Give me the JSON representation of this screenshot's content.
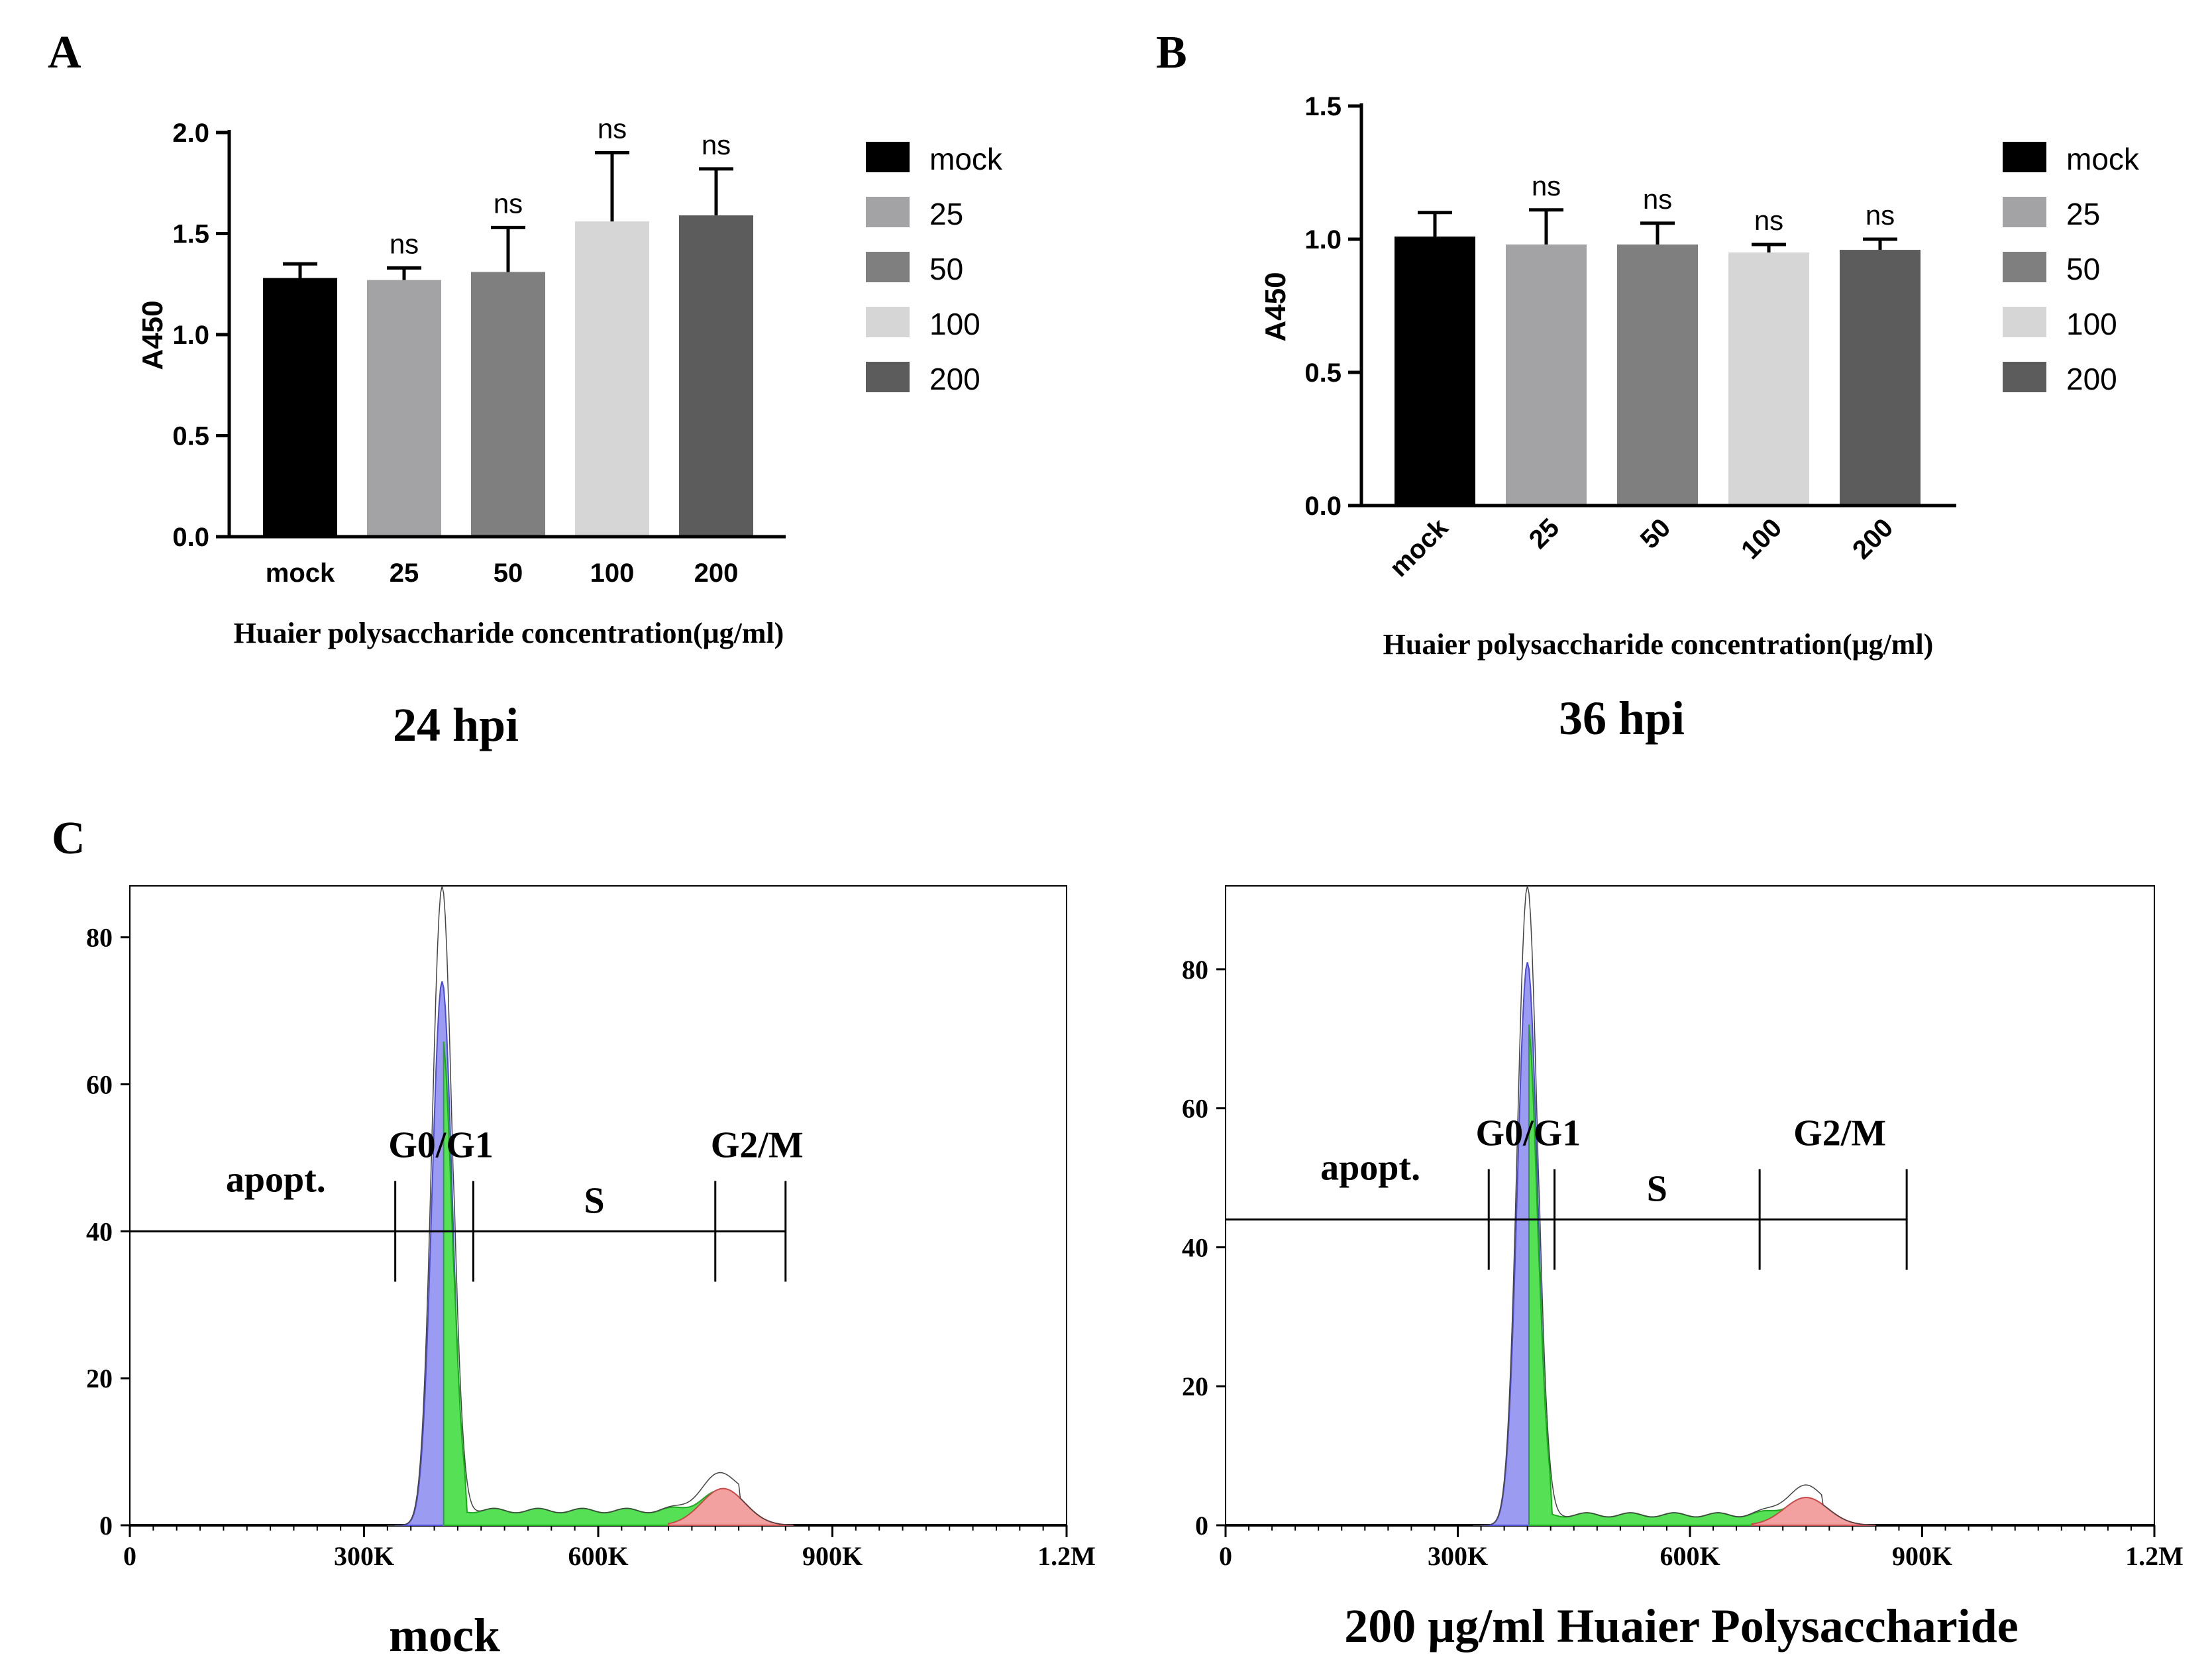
{
  "panel_labels": {
    "a": "A",
    "b": "B",
    "c": "C"
  },
  "colors": {
    "mock": "#000000",
    "c25": "#a3a3a6",
    "c50": "#7f7f7f",
    "c100": "#d6d6d6",
    "c200": "#5c5c5c",
    "g0g1_fill": "#9b9bf2",
    "s_fill": "#55e055",
    "g2m_fill": "#f2a0a0"
  },
  "chart_data": [
    {
      "id": "A",
      "type": "bar",
      "categories": [
        "mock",
        "25",
        "50",
        "100",
        "200"
      ],
      "values": [
        1.28,
        1.27,
        1.31,
        1.56,
        1.59
      ],
      "errors": [
        0.07,
        0.06,
        0.22,
        0.34,
        0.23
      ],
      "annotations": [
        "",
        "ns",
        "ns",
        "ns",
        "ns"
      ],
      "yticks": [
        "0.0",
        "0.5",
        "1.0",
        "1.5",
        "2.0"
      ],
      "ylim": [
        0,
        2.0
      ],
      "ylabel": "A450",
      "xlabel": "Huaier polysaccharide concentration(μg/ml)",
      "title": "24 hpi",
      "legend": [
        "mock",
        "25",
        "50",
        "100",
        "200"
      ]
    },
    {
      "id": "B",
      "type": "bar",
      "categories": [
        "mock",
        "25",
        "50",
        "100",
        "200"
      ],
      "values": [
        1.01,
        0.98,
        0.98,
        0.95,
        0.96
      ],
      "errors": [
        0.09,
        0.13,
        0.08,
        0.03,
        0.04
      ],
      "annotations": [
        "",
        "ns",
        "ns",
        "ns",
        "ns"
      ],
      "yticks": [
        "0.0",
        "0.5",
        "1.0",
        "1.5"
      ],
      "ylim": [
        0,
        1.5
      ],
      "ylabel": "A450",
      "xlabel": "Huaier polysaccharide concentration(μg/ml)",
      "title": "36 hpi",
      "legend": [
        "mock",
        "25",
        "50",
        "100",
        "200"
      ]
    },
    {
      "id": "C1",
      "type": "area",
      "title": "mock",
      "xticks": [
        "0",
        "300K",
        "600K",
        "900K",
        "1.2M"
      ],
      "xlim": [
        0,
        1200000
      ],
      "yticks": [
        "0",
        "20",
        "40",
        "60",
        "80"
      ],
      "ylim": [
        0,
        87
      ],
      "g0g1_peak": {
        "x": 400000,
        "y": 74,
        "total_y": 87
      },
      "g2m_peak": {
        "x": 760000,
        "y": 5
      },
      "s_level": 2,
      "gates": {
        "apopt": [
          0,
          340000
        ],
        "g0g1": [
          340000,
          440000
        ],
        "s": [
          440000,
          750000
        ],
        "g2m": [
          750000,
          840000
        ],
        "level": 40
      },
      "gate_labels": [
        "apopt.",
        "G0/G1",
        "S",
        "G2/M"
      ]
    },
    {
      "id": "C2",
      "type": "area",
      "title": "200 μg/ml Huaier Polysaccharide",
      "xticks": [
        "0",
        "300K",
        "600K",
        "900K",
        "1.2M"
      ],
      "xlim": [
        0,
        1200000
      ],
      "yticks": [
        "0",
        "20",
        "40",
        "60",
        "80"
      ],
      "ylim": [
        0,
        92
      ],
      "g0g1_peak": {
        "x": 390000,
        "y": 81,
        "total_y": 92
      },
      "g2m_peak": {
        "x": 750000,
        "y": 4
      },
      "s_level": 1.5,
      "gates": {
        "apopt": [
          0,
          340000
        ],
        "g0g1": [
          340000,
          425000
        ],
        "s": [
          425000,
          690000
        ],
        "g2m": [
          690000,
          880000
        ],
        "level": 44
      },
      "gate_labels": [
        "apopt.",
        "G0/G1",
        "S",
        "G2/M"
      ]
    }
  ]
}
